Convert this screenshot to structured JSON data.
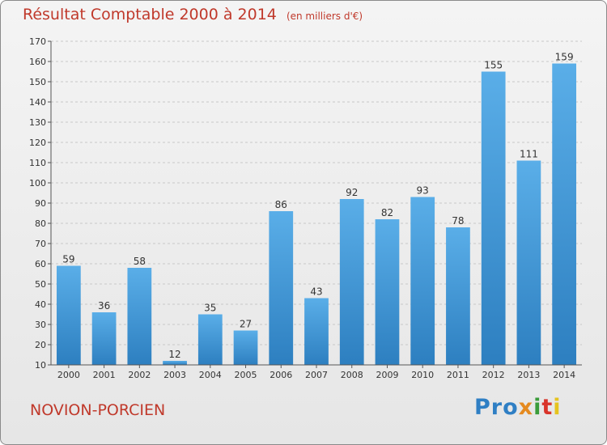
{
  "header": {
    "title": "Résultat Comptable 2000 à 2014",
    "subtitle": "(en milliers d'€)"
  },
  "footer": {
    "commune": "NOVION-PORCIEN",
    "logo": [
      "Pro",
      "x",
      "i",
      "t",
      "i"
    ]
  },
  "colors": {
    "title": "#c0392b",
    "bar_top": "#5aaee8",
    "bar_bottom": "#2d7fc0"
  },
  "chart_data": {
    "type": "bar",
    "categories": [
      "2000",
      "2001",
      "2002",
      "2003",
      "2004",
      "2005",
      "2006",
      "2007",
      "2008",
      "2009",
      "2010",
      "2011",
      "2012",
      "2013",
      "2014"
    ],
    "values": [
      59,
      36,
      58,
      12,
      35,
      27,
      86,
      43,
      92,
      82,
      93,
      78,
      155,
      111,
      159
    ],
    "title": "Résultat Comptable 2000 à 2014",
    "subtitle": "(en milliers d'€)",
    "xlabel": "",
    "ylabel": "",
    "ylim": [
      10,
      170
    ],
    "yticks": [
      10,
      20,
      30,
      40,
      50,
      60,
      70,
      80,
      90,
      100,
      110,
      120,
      130,
      140,
      150,
      160,
      170
    ],
    "grid": true,
    "legend": "none"
  }
}
